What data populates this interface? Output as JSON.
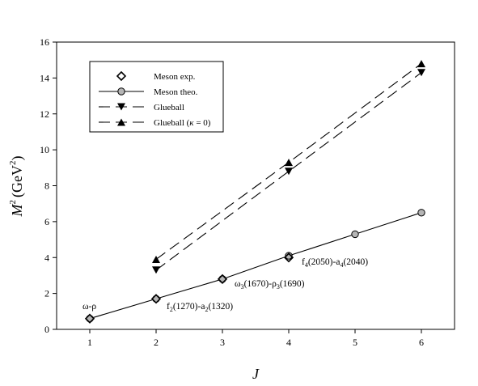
{
  "chart_data": {
    "type": "line",
    "title": "",
    "xlabel": "J",
    "ylabel": "M",
    "ylabel_super": "2",
    "ylabel_unit": "(GeV",
    "ylabel_unit_super": "2",
    "ylabel_unit_close": ")",
    "xlim": [
      0.5,
      6.5
    ],
    "ylim": [
      0,
      16
    ],
    "x_ticks": [
      1,
      2,
      3,
      4,
      5,
      6
    ],
    "y_ticks": [
      0,
      2,
      4,
      6,
      8,
      10,
      12,
      14,
      16
    ],
    "grid": false,
    "legend_position": "top-left",
    "series": [
      {
        "name": "Meson exp.",
        "style": "markers",
        "marker": "diamond-open",
        "points": [
          [
            1,
            0.6
          ],
          [
            2,
            1.7
          ],
          [
            3,
            2.8
          ],
          [
            4,
            4.0
          ]
        ]
      },
      {
        "name": "Meson theo.",
        "style": "solid-line",
        "marker": "circle-gray",
        "points": [
          [
            1,
            0.6
          ],
          [
            2,
            1.7
          ],
          [
            3,
            2.8
          ],
          [
            4,
            4.1
          ],
          [
            5,
            5.3
          ],
          [
            6,
            6.5
          ]
        ]
      },
      {
        "name": "Glueball",
        "style": "dashed-line",
        "marker": "triangle-down",
        "points": [
          [
            2,
            3.3
          ],
          [
            4,
            8.8
          ],
          [
            6,
            14.3
          ]
        ]
      },
      {
        "name": "Glueball (κ = 0)",
        "style": "dashed-line",
        "marker": "triangle-up",
        "points": [
          [
            2,
            3.9
          ],
          [
            4,
            9.3
          ],
          [
            6,
            14.8
          ]
        ]
      }
    ],
    "legend": {
      "meson_exp": "Meson exp.",
      "meson_theo": "Meson theo.",
      "glueball": "Glueball",
      "glueball_k0_prefix": "Glueball (",
      "glueball_k0_kappa": "κ",
      "glueball_k0_suffix": " = 0)"
    },
    "annotations": {
      "omega_rho": "ω-ρ",
      "f2_a2": {
        "p1": "f",
        "s1": "2",
        "p2": "(1270)-a",
        "s2": "2",
        "p3": "(1320)",
        "x": 2,
        "y": 1.7
      },
      "omega3_rho3": {
        "p1": "ω",
        "s1": "3",
        "p2": "(1670)-ρ",
        "s2": "3",
        "p3": "(1690)",
        "x": 3,
        "y": 2.8
      },
      "f4_a4": {
        "p1": "f",
        "s1": "4",
        "p2": "(2050)-a",
        "s2": "4",
        "p3": "(2040)",
        "x": 4,
        "y": 4.0
      }
    }
  }
}
